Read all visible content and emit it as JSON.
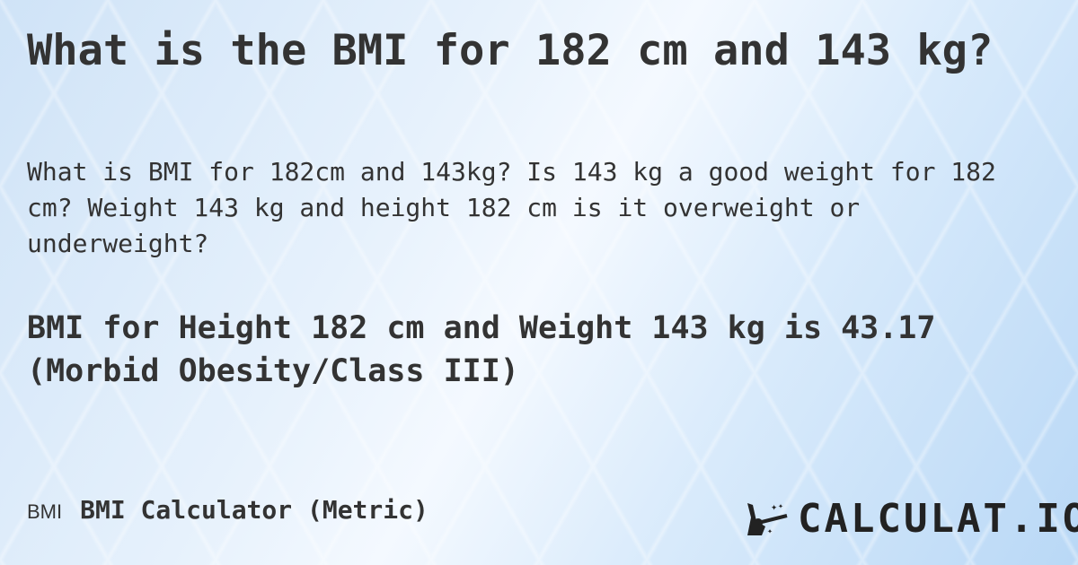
{
  "title": "What is the BMI for 182 cm and 143 kg?",
  "description": "What is BMI for 182cm and 143kg? Is 143 kg a good weight for 182 cm? Weight 143 kg and height 182 cm is it overweight or underweight?",
  "result": "BMI for Height 182 cm and Weight 143 kg is 43.17 (Morbid Obesity/Class III)",
  "footer": {
    "abbr": "BMI",
    "calculator_name": "BMI Calculator (Metric)"
  },
  "logo": {
    "text": "CALCULAT.IO",
    "icon": "magic-hand-wand-icon"
  }
}
